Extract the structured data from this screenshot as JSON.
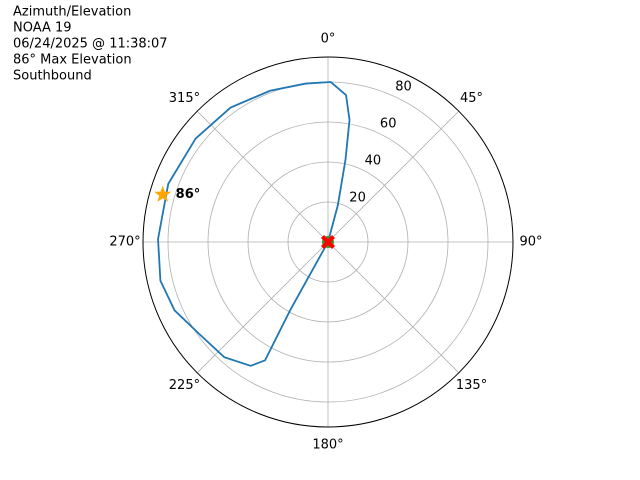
{
  "chart_data": {
    "type": "polar",
    "title_lines": [
      "Azimuth/Elevation",
      "NOAA 19",
      "06/24/2025 @ 11:38:07",
      "86° Max Elevation",
      "Southbound"
    ],
    "theta_direction": "clockwise",
    "theta_zero": "N",
    "rlim": [
      0,
      92.5
    ],
    "rticks": [
      20,
      40,
      60,
      80
    ],
    "thetaticks": [
      {
        "value": 0,
        "label": "0°"
      },
      {
        "value": 45,
        "label": "45°"
      },
      {
        "value": 90,
        "label": "90°"
      },
      {
        "value": 135,
        "label": "135°"
      },
      {
        "value": 180,
        "label": "180°"
      },
      {
        "value": 225,
        "label": "225°"
      },
      {
        "value": 270,
        "label": "270°"
      },
      {
        "value": 315,
        "label": "315°"
      }
    ],
    "grid": true,
    "series": [
      {
        "color": "#1f77b4",
        "azimuth": [
          15,
          15,
          12,
          10,
          7,
          1,
          352,
          339,
          324,
          308,
          290,
          271,
          257,
          246,
          234,
          222,
          212,
          208,
          209,
          209,
          209
        ],
        "elevation": [
          0,
          19,
          42,
          62,
          74,
          80,
          80,
          81,
          83,
          84,
          85,
          85,
          86,
          84,
          79,
          77.5,
          73,
          67,
          39,
          19,
          0
        ]
      }
    ],
    "start_point": {
      "azimuth": 15,
      "elevation": 0,
      "color": "#2ca02c"
    },
    "end_point": {
      "azimuth": 209,
      "elevation": 0,
      "color": "#ff0000"
    },
    "max_point": {
      "azimuth": 286,
      "elevation": 86,
      "label": "86°",
      "color": "#ffa500"
    }
  }
}
